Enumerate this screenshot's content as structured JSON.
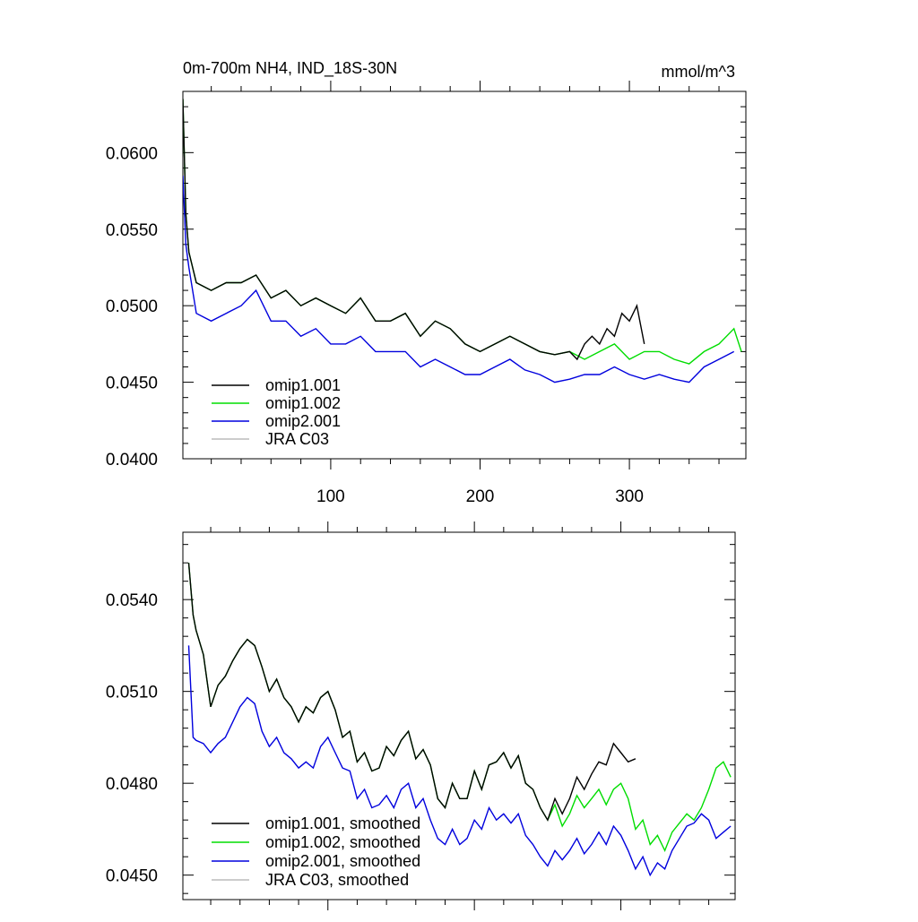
{
  "chart_data": [
    {
      "type": "line",
      "title": "0m-700m NH4, IND_18S-30N",
      "units": "mmol/m^3",
      "xlim": [
        1,
        378
      ],
      "ylim": [
        0.04,
        0.064
      ],
      "yticks": [
        {
          "value": 0.04,
          "label": "0.0400"
        },
        {
          "value": 0.045,
          "label": "0.0450"
        },
        {
          "value": 0.05,
          "label": "0.0500"
        },
        {
          "value": 0.055,
          "label": "0.0550"
        },
        {
          "value": 0.06,
          "label": "0.0600"
        }
      ],
      "xticks": [
        {
          "value": 100,
          "label": "100"
        },
        {
          "value": 200,
          "label": "200"
        },
        {
          "value": 300,
          "label": "300"
        }
      ],
      "legend_position": "bottom-left",
      "series": [
        {
          "name": "omip1.001",
          "color": "#000000",
          "x": [
            1,
            3,
            5,
            10,
            20,
            30,
            40,
            50,
            60,
            70,
            80,
            90,
            100,
            110,
            120,
            130,
            140,
            150,
            160,
            170,
            180,
            190,
            200,
            210,
            220,
            230,
            240,
            250,
            260,
            265,
            270,
            275,
            280,
            285,
            290,
            295,
            300,
            305,
            310
          ],
          "y": [
            0.0635,
            0.056,
            0.0535,
            0.0515,
            0.051,
            0.0515,
            0.0515,
            0.052,
            0.0505,
            0.051,
            0.05,
            0.0505,
            0.05,
            0.0495,
            0.0505,
            0.049,
            0.049,
            0.0495,
            0.048,
            0.049,
            0.0485,
            0.0475,
            0.047,
            0.0475,
            0.048,
            0.0475,
            0.047,
            0.0468,
            0.047,
            0.0465,
            0.0475,
            0.048,
            0.0475,
            0.0485,
            0.048,
            0.0495,
            0.049,
            0.05,
            0.0475
          ]
        },
        {
          "name": "omip1.002",
          "color": "#00dd00",
          "x": [
            1,
            3,
            5,
            10,
            20,
            30,
            40,
            50,
            60,
            70,
            80,
            90,
            100,
            110,
            120,
            130,
            140,
            150,
            160,
            170,
            180,
            190,
            200,
            210,
            220,
            230,
            240,
            250,
            260,
            270,
            280,
            290,
            300,
            310,
            320,
            330,
            340,
            350,
            360,
            370,
            375
          ],
          "y": [
            0.0635,
            0.056,
            0.0535,
            0.0515,
            0.051,
            0.0515,
            0.0515,
            0.052,
            0.0505,
            0.051,
            0.05,
            0.0505,
            0.05,
            0.0495,
            0.0505,
            0.049,
            0.049,
            0.0495,
            0.048,
            0.049,
            0.0485,
            0.0475,
            0.047,
            0.0475,
            0.048,
            0.0475,
            0.047,
            0.0468,
            0.047,
            0.0465,
            0.047,
            0.0475,
            0.0465,
            0.047,
            0.047,
            0.0465,
            0.0462,
            0.047,
            0.0475,
            0.0485,
            0.047
          ]
        },
        {
          "name": "omip2.001",
          "color": "#0000dd",
          "x": [
            1,
            3,
            5,
            10,
            20,
            30,
            40,
            50,
            60,
            70,
            80,
            90,
            100,
            110,
            120,
            130,
            140,
            150,
            160,
            170,
            180,
            190,
            200,
            210,
            220,
            230,
            240,
            250,
            260,
            270,
            280,
            290,
            300,
            310,
            320,
            330,
            340,
            350,
            360,
            370
          ],
          "y": [
            0.0585,
            0.054,
            0.0525,
            0.0495,
            0.049,
            0.0495,
            0.05,
            0.051,
            0.049,
            0.049,
            0.048,
            0.0485,
            0.0475,
            0.0475,
            0.048,
            0.047,
            0.047,
            0.047,
            0.046,
            0.0465,
            0.046,
            0.0455,
            0.0455,
            0.046,
            0.0465,
            0.0458,
            0.0455,
            0.045,
            0.0452,
            0.0455,
            0.0455,
            0.046,
            0.0455,
            0.0452,
            0.0455,
            0.0452,
            0.045,
            0.046,
            0.0465,
            0.047
          ]
        },
        {
          "name": "JRA C03",
          "color": "#bbbbbb",
          "x": [],
          "y": []
        }
      ]
    },
    {
      "type": "line",
      "title": "",
      "xlim": [
        1,
        378
      ],
      "ylim": [
        0.0442,
        0.0562
      ],
      "yticks": [
        {
          "value": 0.045,
          "label": "0.0450"
        },
        {
          "value": 0.048,
          "label": "0.0480"
        },
        {
          "value": 0.051,
          "label": "0.0510"
        },
        {
          "value": 0.054,
          "label": "0.0540"
        }
      ],
      "xticks": [
        {
          "value": 100,
          "label": ""
        },
        {
          "value": 200,
          "label": ""
        },
        {
          "value": 300,
          "label": ""
        }
      ],
      "legend_position": "bottom-left",
      "series": [
        {
          "name": "omip1.001, smoothed",
          "color": "#000000",
          "x": [
            5,
            8,
            10,
            15,
            20,
            25,
            30,
            35,
            40,
            45,
            50,
            55,
            60,
            65,
            70,
            75,
            80,
            85,
            90,
            95,
            100,
            105,
            110,
            115,
            120,
            125,
            130,
            135,
            140,
            145,
            150,
            155,
            160,
            165,
            170,
            175,
            180,
            185,
            190,
            195,
            200,
            205,
            210,
            215,
            220,
            225,
            230,
            235,
            240,
            245,
            250,
            255,
            260,
            265,
            270,
            275,
            280,
            285,
            290,
            295,
            300,
            305,
            310
          ],
          "y": [
            0.0552,
            0.0535,
            0.053,
            0.0522,
            0.0505,
            0.0512,
            0.0515,
            0.052,
            0.0524,
            0.0527,
            0.0525,
            0.0518,
            0.051,
            0.0514,
            0.0508,
            0.0505,
            0.05,
            0.0505,
            0.0503,
            0.0508,
            0.051,
            0.0504,
            0.0495,
            0.0497,
            0.0487,
            0.049,
            0.0484,
            0.0485,
            0.0492,
            0.0489,
            0.0494,
            0.0497,
            0.0488,
            0.0491,
            0.0486,
            0.0475,
            0.0472,
            0.048,
            0.0475,
            0.0475,
            0.0484,
            0.0478,
            0.0486,
            0.0487,
            0.049,
            0.0485,
            0.0489,
            0.048,
            0.0478,
            0.0472,
            0.0468,
            0.0475,
            0.047,
            0.0475,
            0.0482,
            0.0478,
            0.0483,
            0.0487,
            0.0486,
            0.0493,
            0.049,
            0.0487,
            0.0488
          ]
        },
        {
          "name": "omip1.002, smoothed",
          "color": "#00dd00",
          "x": [
            5,
            8,
            10,
            15,
            20,
            25,
            30,
            35,
            40,
            45,
            50,
            55,
            60,
            65,
            70,
            75,
            80,
            85,
            90,
            95,
            100,
            105,
            110,
            115,
            120,
            125,
            130,
            135,
            140,
            145,
            150,
            155,
            160,
            165,
            170,
            175,
            180,
            185,
            190,
            195,
            200,
            205,
            210,
            215,
            220,
            225,
            230,
            235,
            240,
            245,
            250,
            255,
            260,
            265,
            270,
            275,
            280,
            285,
            290,
            295,
            300,
            305,
            310,
            315,
            320,
            325,
            330,
            335,
            340,
            345,
            350,
            355,
            360,
            365,
            370,
            375
          ],
          "y": [
            0.0552,
            0.0535,
            0.053,
            0.0522,
            0.0505,
            0.0512,
            0.0515,
            0.052,
            0.0524,
            0.0527,
            0.0525,
            0.0518,
            0.051,
            0.0514,
            0.0508,
            0.0505,
            0.05,
            0.0505,
            0.0503,
            0.0508,
            0.051,
            0.0504,
            0.0495,
            0.0497,
            0.0487,
            0.049,
            0.0484,
            0.0485,
            0.0492,
            0.0489,
            0.0494,
            0.0497,
            0.0488,
            0.0491,
            0.0486,
            0.0475,
            0.0472,
            0.048,
            0.0475,
            0.0475,
            0.0484,
            0.0478,
            0.0486,
            0.0487,
            0.049,
            0.0485,
            0.0489,
            0.048,
            0.0478,
            0.0472,
            0.0468,
            0.0473,
            0.0466,
            0.047,
            0.0476,
            0.0472,
            0.0475,
            0.0478,
            0.0473,
            0.0478,
            0.048,
            0.0475,
            0.0465,
            0.0468,
            0.046,
            0.0463,
            0.0458,
            0.0464,
            0.0467,
            0.047,
            0.0468,
            0.0472,
            0.0478,
            0.0485,
            0.0487,
            0.0482
          ]
        },
        {
          "name": "omip2.001, smoothed",
          "color": "#0000dd",
          "x": [
            5,
            8,
            10,
            15,
            20,
            25,
            30,
            35,
            40,
            45,
            50,
            55,
            60,
            65,
            70,
            75,
            80,
            85,
            90,
            95,
            100,
            105,
            110,
            115,
            120,
            125,
            130,
            135,
            140,
            145,
            150,
            155,
            160,
            165,
            170,
            175,
            180,
            185,
            190,
            195,
            200,
            205,
            210,
            215,
            220,
            225,
            230,
            235,
            240,
            245,
            250,
            255,
            260,
            265,
            270,
            275,
            280,
            285,
            290,
            295,
            300,
            305,
            310,
            315,
            320,
            325,
            330,
            335,
            340,
            345,
            350,
            355,
            360,
            365,
            370,
            375
          ],
          "y": [
            0.0525,
            0.0495,
            0.0494,
            0.0493,
            0.049,
            0.0493,
            0.0495,
            0.05,
            0.0505,
            0.0508,
            0.0506,
            0.0497,
            0.0492,
            0.0495,
            0.049,
            0.0488,
            0.0485,
            0.0487,
            0.0485,
            0.0492,
            0.0495,
            0.049,
            0.0485,
            0.0484,
            0.0475,
            0.0478,
            0.0472,
            0.0473,
            0.0476,
            0.0472,
            0.0478,
            0.048,
            0.0472,
            0.0475,
            0.0468,
            0.0462,
            0.046,
            0.0465,
            0.046,
            0.0462,
            0.0468,
            0.0465,
            0.0472,
            0.0468,
            0.047,
            0.0467,
            0.047,
            0.0463,
            0.046,
            0.0456,
            0.0453,
            0.0458,
            0.0455,
            0.0458,
            0.0462,
            0.0457,
            0.046,
            0.0464,
            0.046,
            0.0466,
            0.0463,
            0.0458,
            0.0452,
            0.0456,
            0.045,
            0.0454,
            0.0452,
            0.0458,
            0.0462,
            0.0466,
            0.0467,
            0.047,
            0.0468,
            0.0462,
            0.0464,
            0.0466
          ]
        },
        {
          "name": "JRA C03, smoothed",
          "color": "#bbbbbb",
          "x": [],
          "y": []
        }
      ]
    }
  ]
}
